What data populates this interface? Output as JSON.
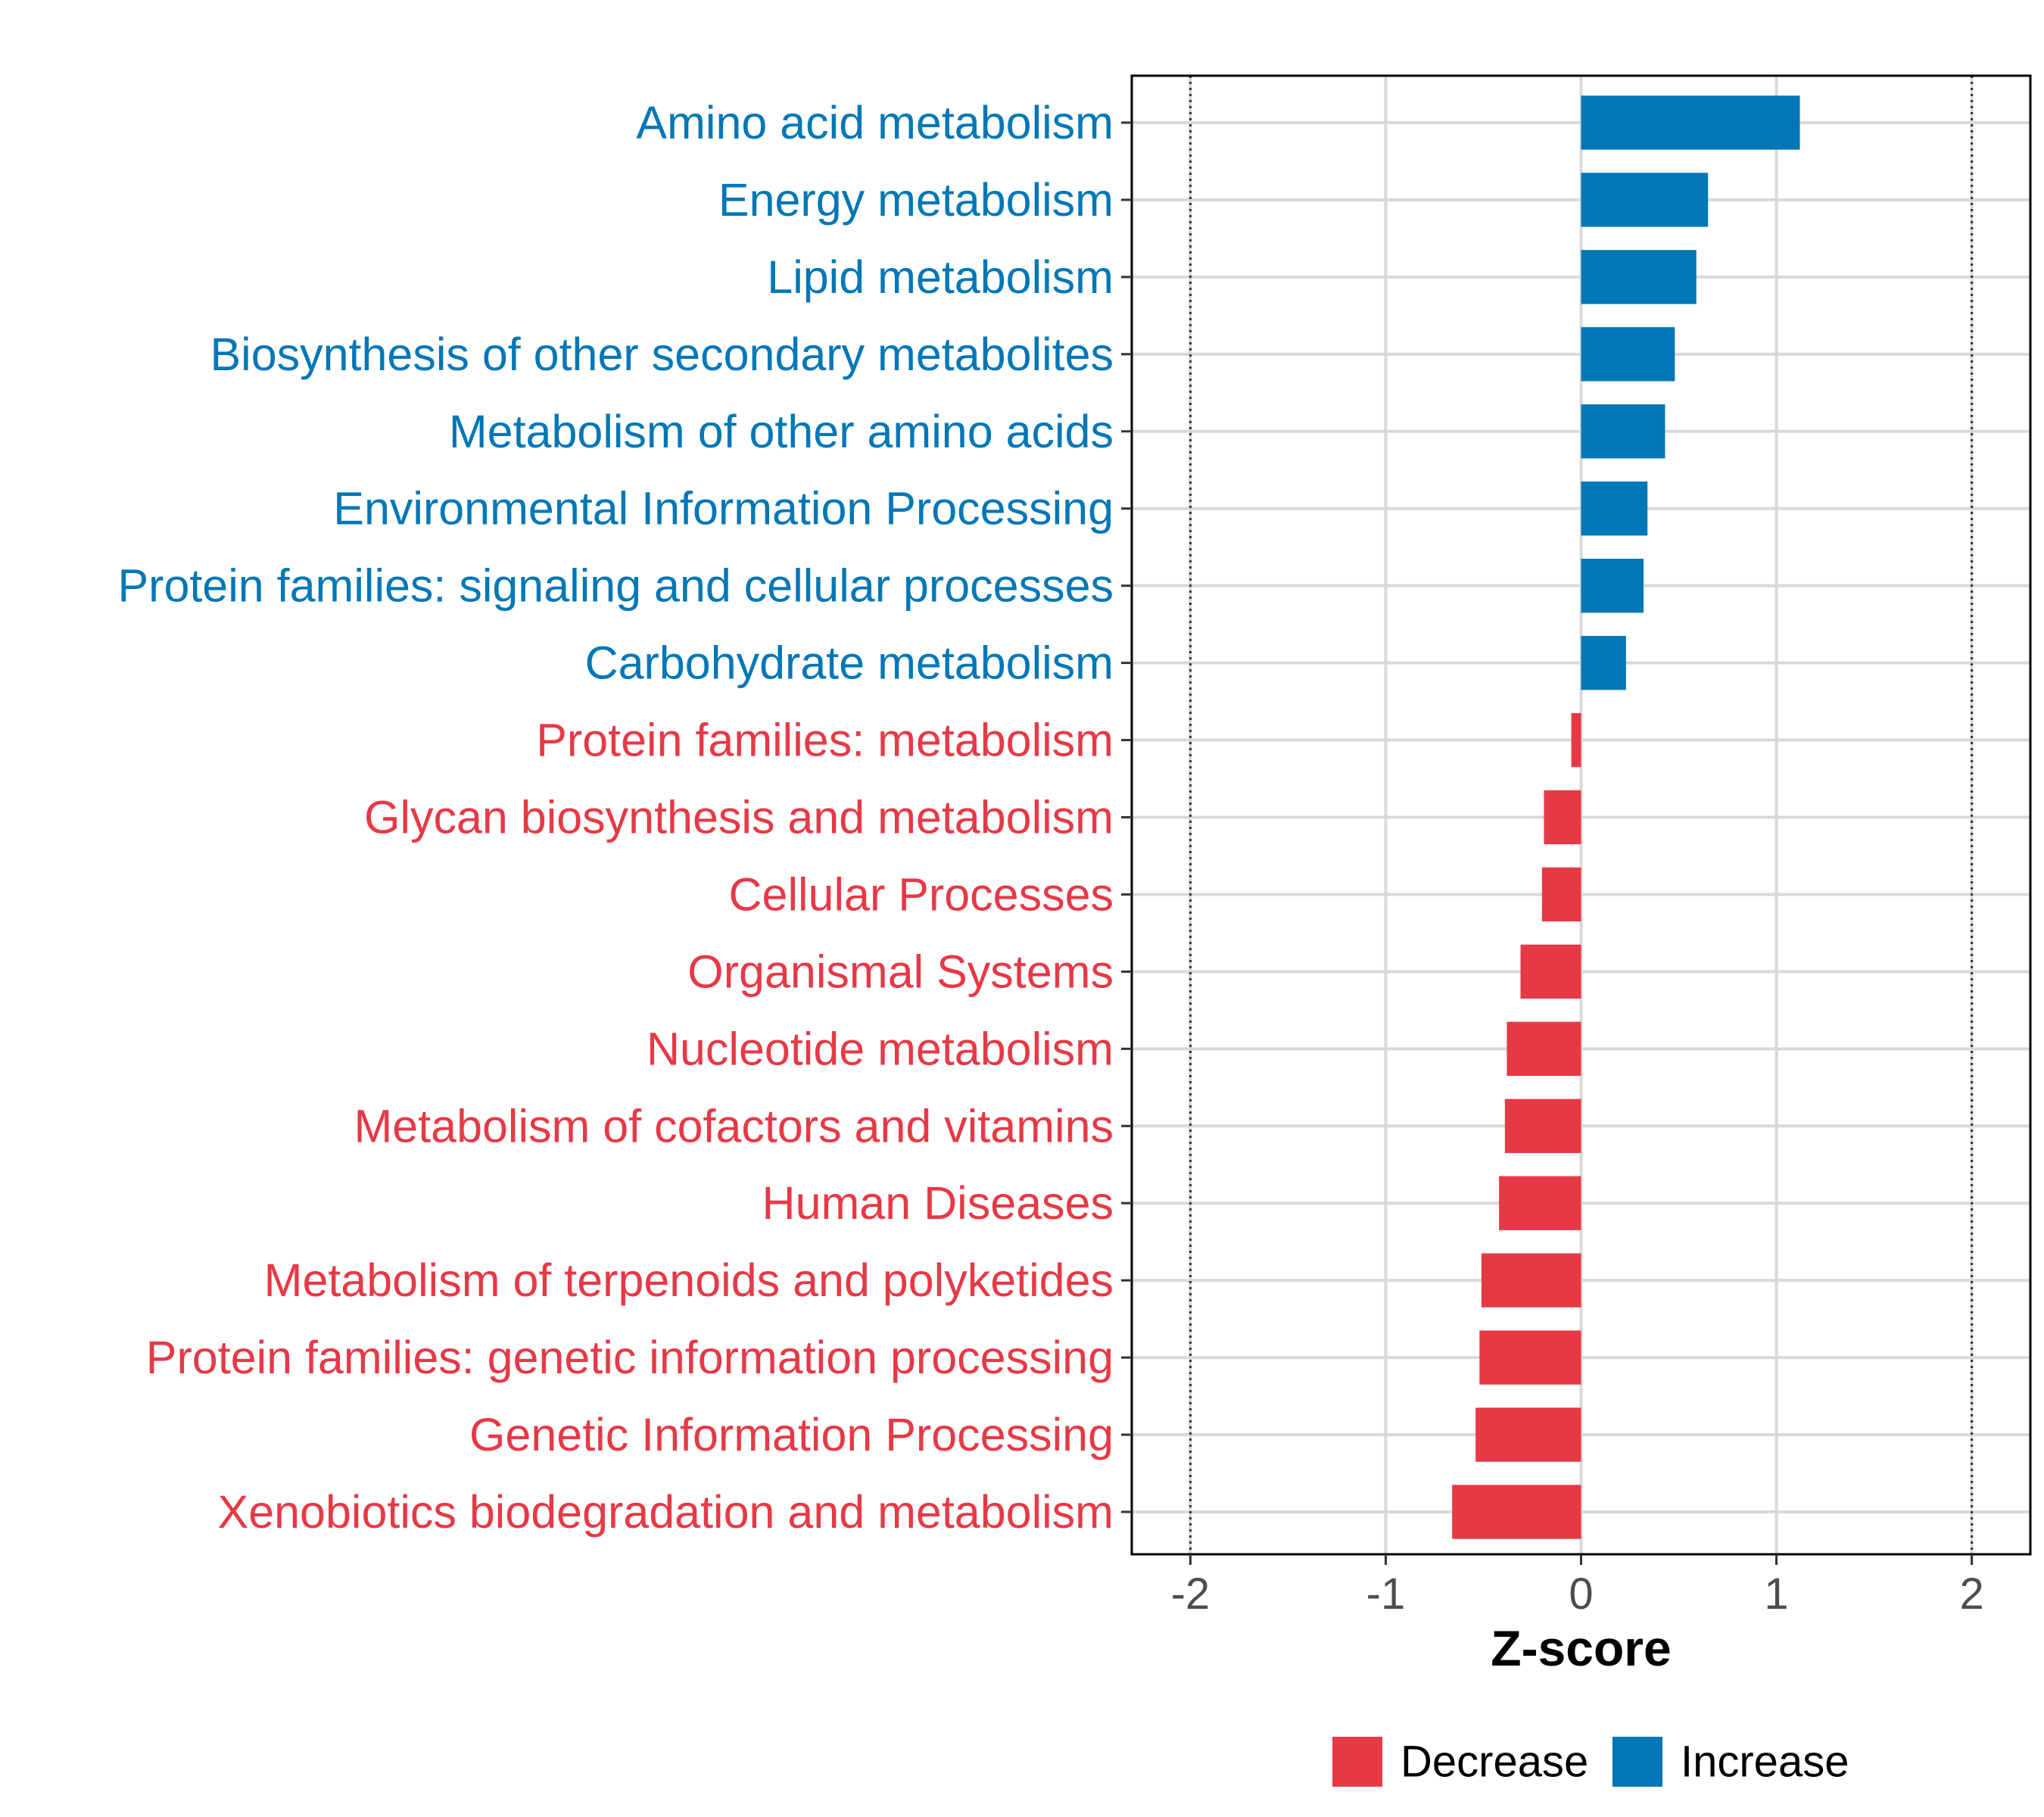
{
  "chart_data": {
    "type": "bar",
    "orientation": "horizontal",
    "xlabel": "Z-score",
    "ylabel": "",
    "xlim": [
      -2.3,
      2.3
    ],
    "x_ticks": [
      -2,
      -1,
      0,
      1,
      2
    ],
    "x_tick_labels": [
      "-2",
      "-1",
      "0",
      "1",
      "2"
    ],
    "reference_lines": [
      -2,
      2
    ],
    "grid": true,
    "legend_position": "bottom",
    "legend": [
      {
        "key": "decrease",
        "label": "Decrease",
        "color": "#E63946"
      },
      {
        "key": "increase",
        "label": "Increase",
        "color": "#0077B6"
      }
    ],
    "categories": [
      "Amino acid metabolism",
      "Energy metabolism",
      "Lipid metabolism",
      "Biosynthesis of other secondary metabolites",
      "Metabolism of other amino acids",
      "Environmental Information Processing",
      "Protein families: signaling and cellular processes",
      "Carbohydrate metabolism",
      "Protein families: metabolism",
      "Glycan biosynthesis and metabolism",
      "Cellular Processes",
      "Organismal Systems",
      "Nucleotide metabolism",
      "Metabolism of cofactors and vitamins",
      "Human Diseases",
      "Metabolism of terpenoids and polyketides",
      "Protein families: genetic information processing",
      "Genetic Information Processing",
      "Xenobiotics biodegradation and metabolism"
    ],
    "values": [
      1.12,
      0.65,
      0.59,
      0.48,
      0.43,
      0.34,
      0.32,
      0.23,
      -0.05,
      -0.19,
      -0.2,
      -0.31,
      -0.38,
      -0.39,
      -0.42,
      -0.51,
      -0.52,
      -0.54,
      -0.66
    ],
    "groups": [
      "increase",
      "increase",
      "increase",
      "increase",
      "increase",
      "increase",
      "increase",
      "increase",
      "decrease",
      "decrease",
      "decrease",
      "decrease",
      "decrease",
      "decrease",
      "decrease",
      "decrease",
      "decrease",
      "decrease",
      "decrease"
    ]
  }
}
